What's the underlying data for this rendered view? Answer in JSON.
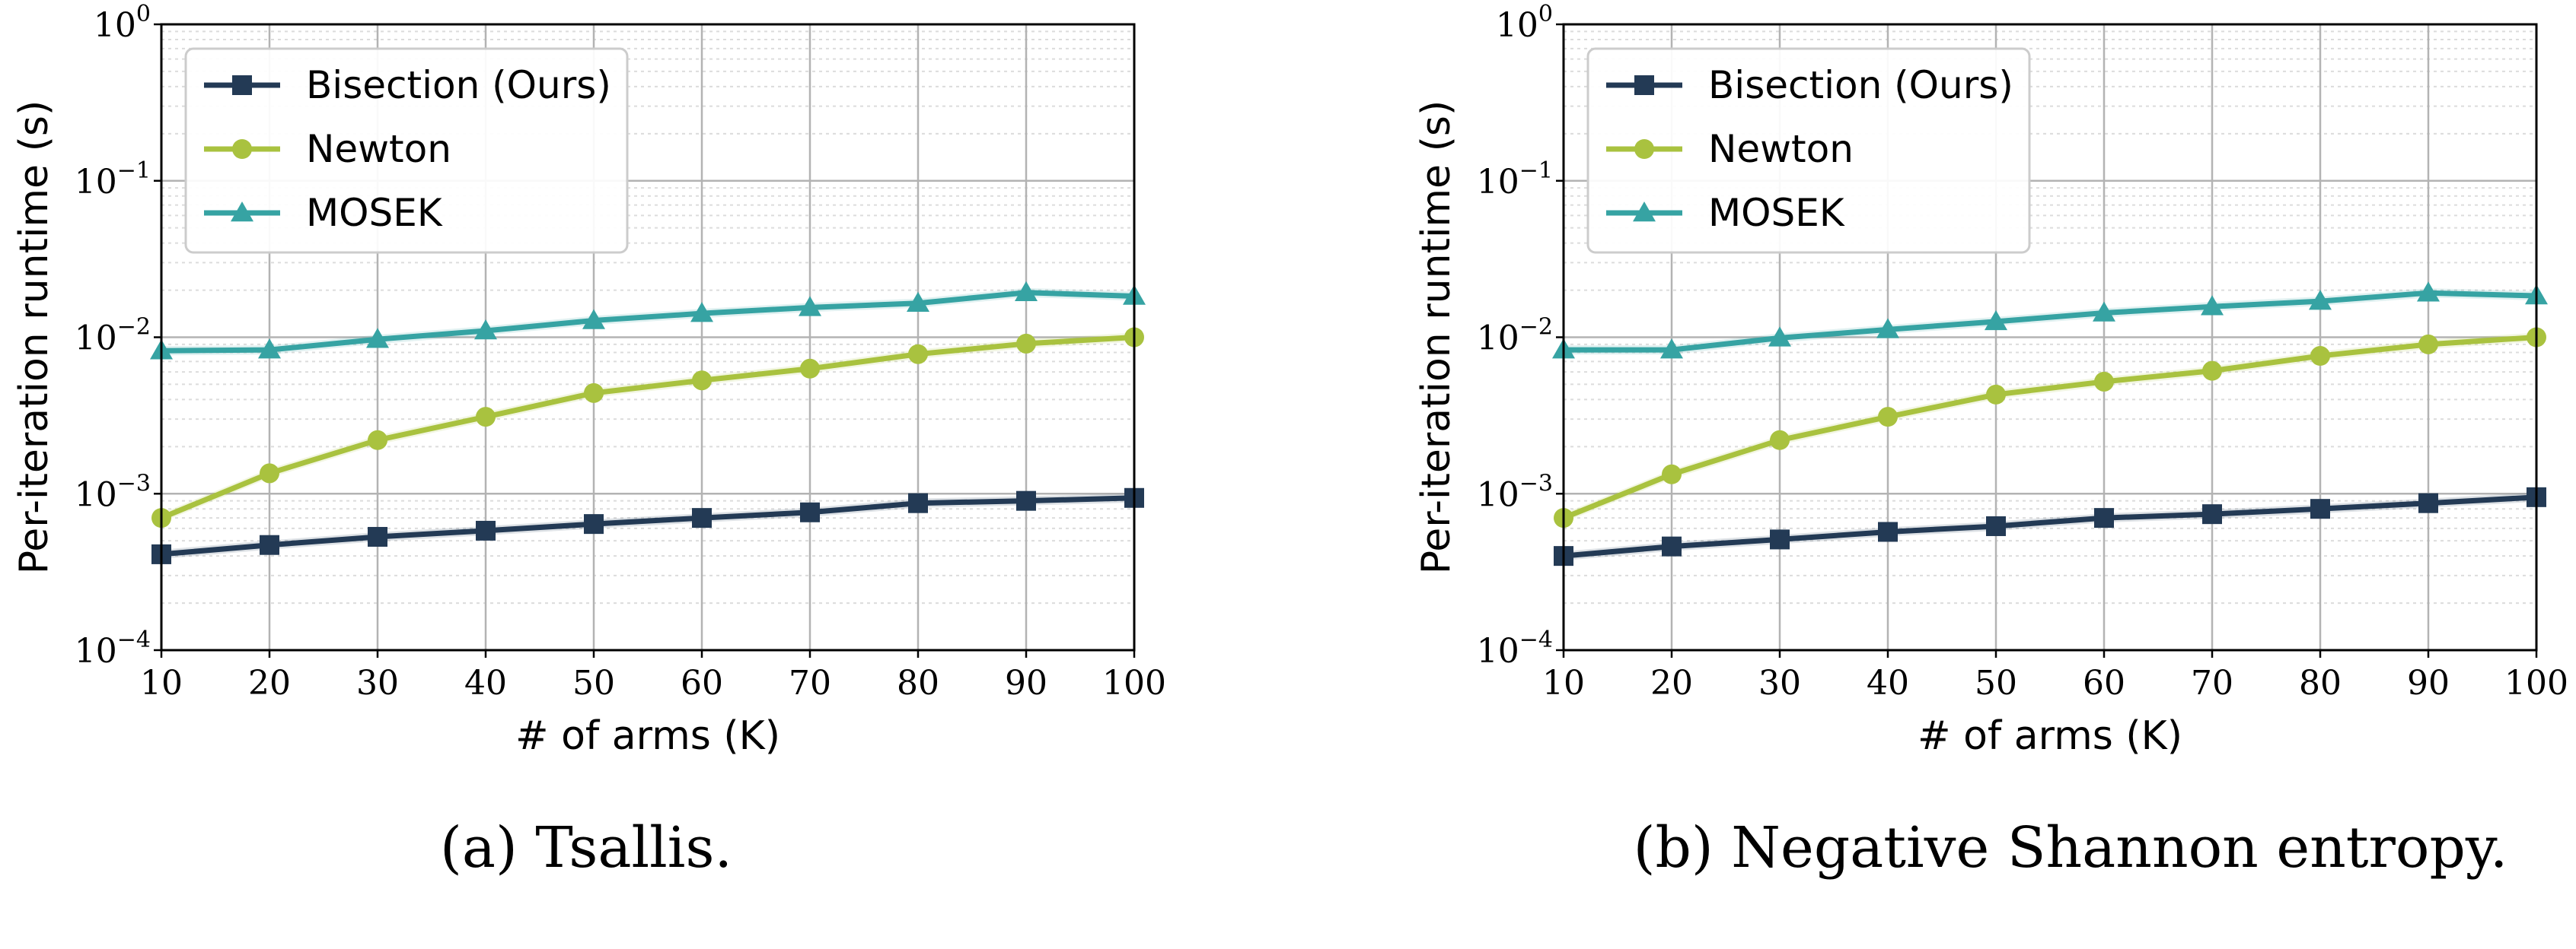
{
  "colors": {
    "bisection": "#233a55",
    "newton": "#a9c23f",
    "mosek": "#36a3a3",
    "grid_major": "#b3b3b3",
    "grid_minor": "#dcdcdc",
    "axis": "#000000"
  },
  "chart_data": [
    {
      "type": "line",
      "caption": "(a) Tsallis.",
      "xlabel": "# of arms (K)",
      "ylabel": "Per-iteration runtime (s)",
      "yscale": "log",
      "xlim": [
        10,
        100
      ],
      "ylim": [
        0.0001,
        1
      ],
      "x_ticks": [
        "10",
        "20",
        "30",
        "40",
        "50",
        "60",
        "70",
        "80",
        "90",
        "100"
      ],
      "y_ticks": [
        {
          "base": "10",
          "exp": "0"
        },
        {
          "base": "10",
          "exp": "−1"
        },
        {
          "base": "10",
          "exp": "−2"
        },
        {
          "base": "10",
          "exp": "−3"
        },
        {
          "base": "10",
          "exp": "−4"
        }
      ],
      "grid": true,
      "legend_position": "top-left",
      "x": [
        10,
        20,
        30,
        40,
        50,
        60,
        70,
        80,
        90,
        100
      ],
      "series": [
        {
          "name": "Bisection (Ours)",
          "color_key": "bisection",
          "marker": "square",
          "values": [
            0.00041,
            0.00047,
            0.00053,
            0.00058,
            0.00064,
            0.0007,
            0.00076,
            0.00087,
            0.0009,
            0.00094
          ]
        },
        {
          "name": "Newton",
          "color_key": "newton",
          "marker": "circle",
          "values": [
            0.0007,
            0.00135,
            0.0022,
            0.0031,
            0.0044,
            0.0053,
            0.0063,
            0.0078,
            0.0091,
            0.01
          ]
        },
        {
          "name": "MOSEK",
          "color_key": "mosek",
          "marker": "triangle",
          "values": [
            0.0082,
            0.0083,
            0.0097,
            0.011,
            0.0128,
            0.0142,
            0.0155,
            0.0165,
            0.0193,
            0.0183
          ]
        }
      ]
    },
    {
      "type": "line",
      "caption": "(b) Negative Shannon entropy.",
      "xlabel": "# of arms (K)",
      "ylabel": "Per-iteration runtime (s)",
      "yscale": "log",
      "xlim": [
        10,
        100
      ],
      "ylim": [
        0.0001,
        1
      ],
      "x_ticks": [
        "10",
        "20",
        "30",
        "40",
        "50",
        "60",
        "70",
        "80",
        "90",
        "100"
      ],
      "y_ticks": [
        {
          "base": "10",
          "exp": "0"
        },
        {
          "base": "10",
          "exp": "−1"
        },
        {
          "base": "10",
          "exp": "−2"
        },
        {
          "base": "10",
          "exp": "−3"
        },
        {
          "base": "10",
          "exp": "−4"
        }
      ],
      "grid": true,
      "legend_position": "top-left",
      "x": [
        10,
        20,
        30,
        40,
        50,
        60,
        70,
        80,
        90,
        100
      ],
      "series": [
        {
          "name": "Bisection (Ours)",
          "color_key": "bisection",
          "marker": "square",
          "values": [
            0.0004,
            0.00046,
            0.00051,
            0.00057,
            0.00062,
            0.0007,
            0.00074,
            0.0008,
            0.00087,
            0.00095
          ]
        },
        {
          "name": "Newton",
          "color_key": "newton",
          "marker": "circle",
          "values": [
            0.0007,
            0.00133,
            0.0022,
            0.0031,
            0.0043,
            0.0052,
            0.0061,
            0.0076,
            0.009,
            0.01
          ]
        },
        {
          "name": "MOSEK",
          "color_key": "mosek",
          "marker": "triangle",
          "values": [
            0.0083,
            0.0083,
            0.0099,
            0.0112,
            0.0126,
            0.0143,
            0.0157,
            0.017,
            0.0192,
            0.0184
          ]
        }
      ]
    }
  ]
}
